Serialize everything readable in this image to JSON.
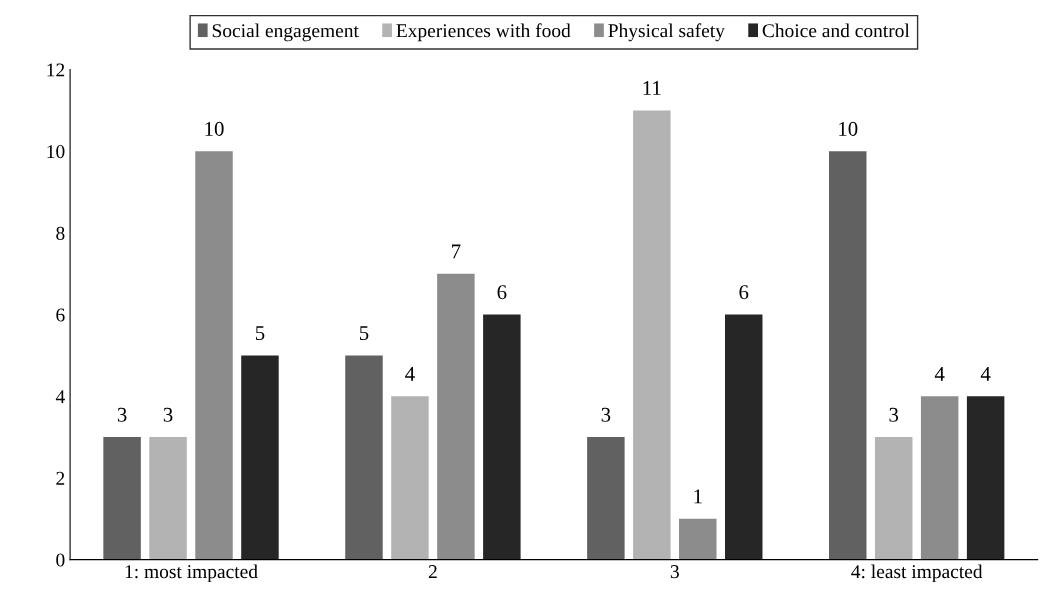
{
  "chart_data": {
    "type": "bar",
    "categories": [
      "1: most impacted",
      "2",
      "3",
      "4: least impacted"
    ],
    "series": [
      {
        "name": "Social engagement",
        "color": "#616161",
        "values": [
          3,
          5,
          3,
          10
        ]
      },
      {
        "name": "Experiences with food",
        "color": "#b3b3b3",
        "values": [
          3,
          4,
          11,
          3
        ]
      },
      {
        "name": "Physical safety",
        "color": "#8c8c8c",
        "values": [
          10,
          7,
          1,
          4
        ]
      },
      {
        "name": "Choice and control",
        "color": "#262626",
        "values": [
          5,
          6,
          6,
          4
        ]
      }
    ],
    "ylim": [
      0,
      12
    ],
    "yticks": [
      0,
      2,
      4,
      6,
      8,
      10,
      12
    ],
    "data_labels": true,
    "legend": "top",
    "grid": false
  }
}
